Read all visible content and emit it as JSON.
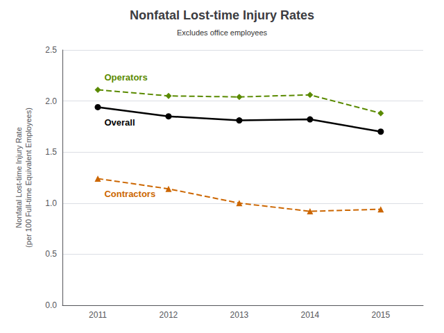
{
  "chart_data": {
    "type": "line",
    "title": "Nonfatal Lost-time Injury Rates",
    "subtitle": "Excludes office employees",
    "ylabel": "Nonfatal Lost-time Injury Rate\n(per 100 Full-time Equivalent Employees)",
    "x": [
      2011,
      2012,
      2013,
      2014,
      2015
    ],
    "xlim": [
      2010.5,
      2015.6
    ],
    "xticks": [
      2011,
      2012,
      2013,
      2014,
      2015
    ],
    "ylim": [
      0.0,
      2.5
    ],
    "yticks": [
      {
        "value": 0.0,
        "label": "0.0"
      },
      0.5,
      {
        "value": 1.0,
        "label": "1.0"
      },
      1.5,
      {
        "value": 2.0,
        "label": "2.0"
      },
      2.5
    ],
    "grid": true,
    "series": [
      {
        "name": "Operators",
        "color": "#5a8a00",
        "marker": "diamond",
        "line_style": "dashed",
        "values": [
          2.11,
          2.05,
          2.04,
          2.06,
          1.88
        ]
      },
      {
        "name": "Overall",
        "color": "#000000",
        "marker": "circle",
        "line_style": "solid",
        "values": [
          1.94,
          1.85,
          1.81,
          1.82,
          1.7
        ]
      },
      {
        "name": "Contractors",
        "color": "#cc6600",
        "marker": "triangle",
        "line_style": "dashed",
        "values": [
          1.24,
          1.14,
          1.0,
          0.92,
          0.94
        ]
      }
    ]
  }
}
